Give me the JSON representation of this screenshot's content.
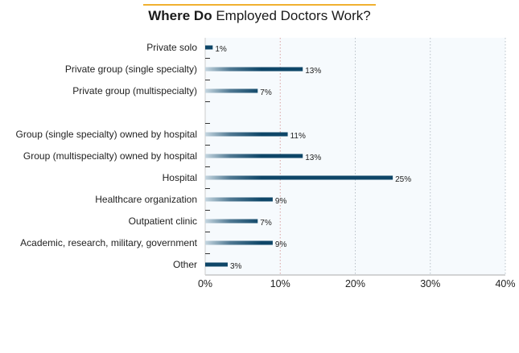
{
  "chart_data": {
    "type": "bar",
    "orientation": "horizontal",
    "title_bold": "Where Do",
    "title_rest": "Employed Doctors Work?",
    "categories": [
      "Private solo",
      "Private group (single specialty)",
      "Private group (multispecialty)",
      "",
      "Group (single specialty) owned by hospital",
      "Group (multispecialty) owned by hospital",
      "Hospital",
      "Healthcare organization",
      "Outpatient clinic",
      "Academic, research, military, government",
      "Other"
    ],
    "values": [
      1,
      13,
      7,
      null,
      11,
      13,
      25,
      9,
      7,
      9,
      3
    ],
    "data_labels": [
      "1%",
      "13%",
      "7%",
      "",
      "11%",
      "13%",
      "25%",
      "9%",
      "7%",
      "9%",
      "3%"
    ],
    "xlim": [
      0,
      40
    ],
    "xticks": [
      0,
      10,
      20,
      30,
      40
    ],
    "xtick_labels": [
      "0%",
      "10%",
      "20%",
      "30%",
      "40%"
    ],
    "grid": "vertical dotted",
    "colors": {
      "bar": "#0e4668",
      "bar_fade": "#c5d6e0",
      "accent_line": "#f0b030",
      "plot_bg": "#f6fafd"
    }
  }
}
